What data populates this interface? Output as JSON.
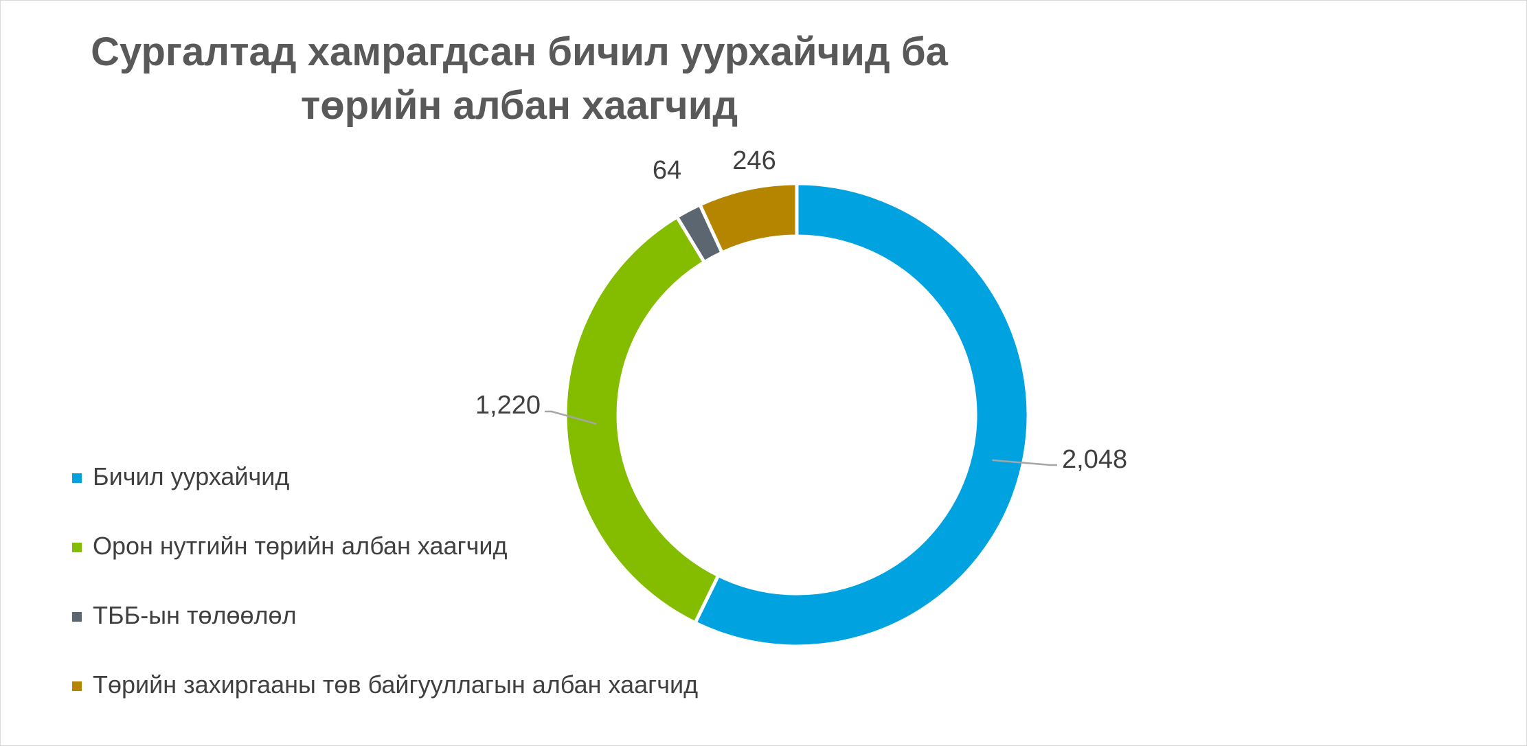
{
  "chart_data": {
    "type": "pie",
    "variant": "donut",
    "title": "Сургалтад хамрагдсан бичил уурхайчид ба төрийн албан хаагчид",
    "title_lines": [
      "Сургалтад хамрагдсан бичил уурхайчид ба",
      "төрийн албан хаагчид"
    ],
    "legend_position": "left-bottom",
    "series": [
      {
        "values": [
          2048,
          1220,
          64,
          246
        ],
        "labels": [
          "2,048",
          "1,220",
          "64",
          "246"
        ]
      }
    ],
    "categories": [
      "Бичил уурхайчид",
      "Орон нутгийн төрийн албан хаагчид",
      "ТББ-ын төлөөлөл",
      "Төрийн захиргааны төв байгууллагын албан хаагчид"
    ],
    "colors": [
      "#00a2e0",
      "#84bd00",
      "#5b6670",
      "#b58500"
    ]
  }
}
